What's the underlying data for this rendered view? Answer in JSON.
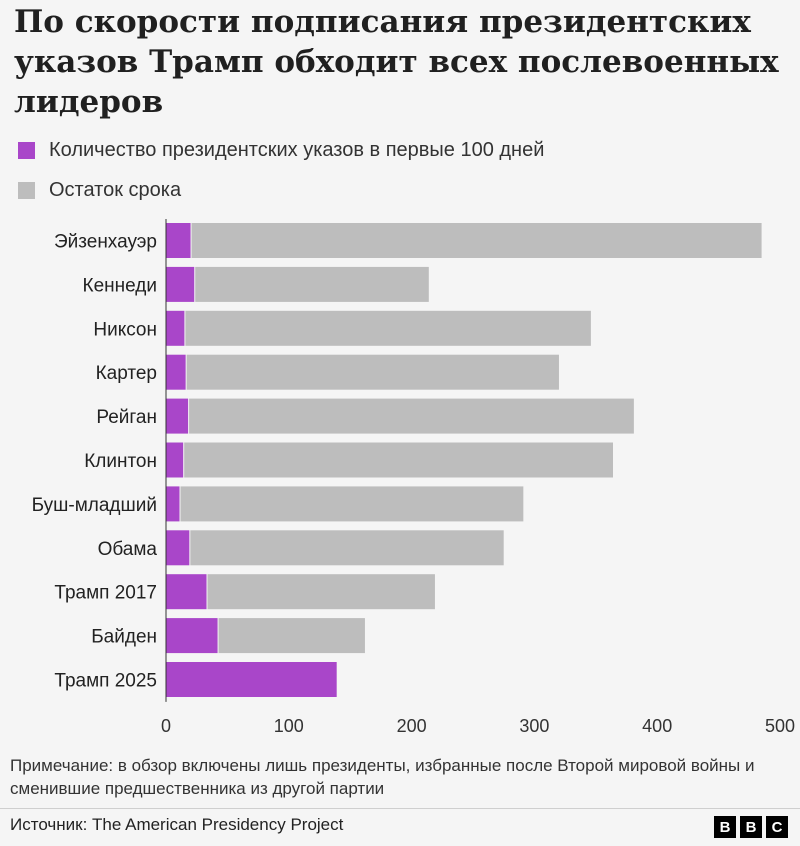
{
  "title": "По скорости подписания президентских указов Трамп обходит всех послевоенных лидеров",
  "legend": [
    {
      "label": "Количество президентских указов в первые 100 дней",
      "color": "#a946c9"
    },
    {
      "label": "Остаток срока",
      "color": "#bdbdbd"
    }
  ],
  "note": "Примечание: в обзор включены лишь президенты, избранные после Второй мировой войны и сменившие предшественника из другой партии",
  "source": "Источник: The American Presidency Project",
  "logo": [
    "B",
    "B",
    "C"
  ],
  "chart_data": {
    "type": "bar",
    "orientation": "horizontal",
    "stacked": true,
    "categories": [
      "Эйзенхауэр",
      "Кеннеди",
      "Никсон",
      "Картер",
      "Рейган",
      "Клинтон",
      "Буш-младший",
      "Обама",
      "Трамп 2017",
      "Байден",
      "Трамп 2025"
    ],
    "series": [
      {
        "name": "Количество президентских указов в первые 100 дней",
        "color": "#a946c9",
        "values": [
          20,
          23,
          15,
          16,
          18,
          14,
          11,
          19,
          33,
          42,
          139
        ]
      },
      {
        "name": "Остаток срока",
        "color": "#bdbdbd",
        "values": [
          465,
          191,
          331,
          304,
          363,
          350,
          280,
          256,
          186,
          120,
          0
        ]
      }
    ],
    "xlim": [
      0,
      500
    ],
    "xticks": [
      0,
      100,
      200,
      300,
      400,
      500
    ],
    "grid": false,
    "legend_position": "top-left"
  }
}
